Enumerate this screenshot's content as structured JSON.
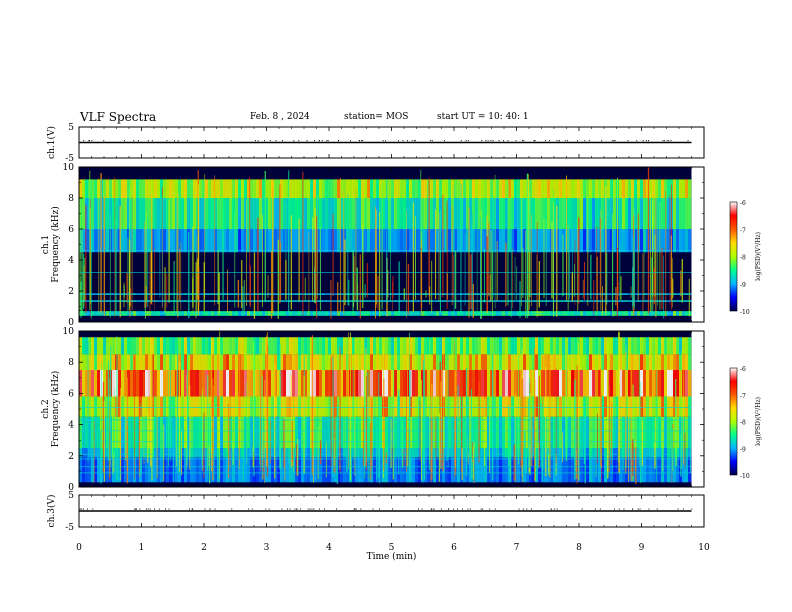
{
  "header": {
    "title": "VLF Spectra",
    "date": "Feb. 8 , 2024",
    "station": "station= MOS",
    "start_ut": "start UT = 10: 40: 1"
  },
  "chart_data": [
    {
      "type": "line",
      "name": "ch1-voltage",
      "ylabel": "ch.1(V)",
      "ylim": [
        -5,
        5
      ],
      "yticks": [
        "5",
        "-5"
      ],
      "x": [
        0,
        9.8
      ],
      "values": [
        0,
        0
      ]
    },
    {
      "type": "heatmap",
      "name": "ch1-spectrogram",
      "ylabel": "ch.1\nFrequency (kHz)",
      "ylim": [
        0,
        10
      ],
      "yticks": [
        "0",
        "2",
        "4",
        "6",
        "8",
        "10"
      ],
      "xlim": [
        0,
        9.8
      ],
      "colorbar": {
        "label": "log(PSD)(V²/Hz)",
        "range": [
          -10,
          -6
        ],
        "ticks": [
          "-6",
          "-7",
          "-8",
          "-9",
          "-10"
        ],
        "colors": [
          "#000050",
          "#0000ff",
          "#00b4ff",
          "#00ff90",
          "#b0ff00",
          "#ffdc00",
          "#ff5a00",
          "#ff0000",
          "#ffffff"
        ]
      },
      "bands": [
        {
          "f": [
            8.0,
            9.2
          ],
          "level": 0.5
        },
        {
          "f": [
            6.0,
            8.0
          ],
          "level": 0.36
        },
        {
          "f": [
            4.5,
            6.0
          ],
          "level": 0.24
        },
        {
          "f": [
            0.4,
            0.7
          ],
          "level": 0.35
        },
        {
          "f": [
            1.3,
            1.4
          ],
          "level": 0.28
        },
        {
          "f": [
            1.75,
            1.85
          ],
          "level": 0.25
        }
      ]
    },
    {
      "type": "heatmap",
      "name": "ch2-spectrogram",
      "ylabel": "ch.2\nFrequency (kHz)",
      "ylim": [
        0,
        10
      ],
      "yticks": [
        "0",
        "2",
        "4",
        "6",
        "8",
        "10"
      ],
      "xlim": [
        0,
        9.8
      ],
      "colorbar": {
        "label": "log(PSD)(V²/Hz)",
        "range": [
          -10,
          -6
        ],
        "ticks": [
          "-6",
          "-7",
          "-8",
          "-9",
          "-10"
        ],
        "colors": [
          "#000050",
          "#0000ff",
          "#00b4ff",
          "#00ff90",
          "#b0ff00",
          "#ffdc00",
          "#ff5a00",
          "#ff0000",
          "#ffffff"
        ]
      },
      "bands": [
        {
          "f": [
            8.5,
            9.6
          ],
          "level": 0.45
        },
        {
          "f": [
            7.5,
            8.5
          ],
          "level": 0.58
        },
        {
          "f": [
            5.8,
            7.5
          ],
          "level": 0.8
        },
        {
          "f": [
            4.5,
            5.8
          ],
          "level": 0.55
        },
        {
          "f": [
            2.5,
            4.5
          ],
          "level": 0.38
        },
        {
          "f": [
            1.9,
            2.5
          ],
          "level": 0.3
        },
        {
          "f": [
            0.3,
            1.9
          ],
          "level": 0.22
        }
      ]
    },
    {
      "type": "line",
      "name": "ch3-voltage",
      "ylabel": "ch.3(V)",
      "ylim": [
        -5,
        5
      ],
      "yticks": [
        "5",
        "-5"
      ],
      "x": [
        0,
        9.8
      ],
      "values": [
        0,
        0
      ]
    }
  ],
  "xaxis": {
    "label": "Time (min)",
    "xlim": [
      0,
      10
    ],
    "ticks": [
      "0",
      "1",
      "2",
      "3",
      "4",
      "5",
      "6",
      "7",
      "8",
      "9",
      "10"
    ]
  }
}
